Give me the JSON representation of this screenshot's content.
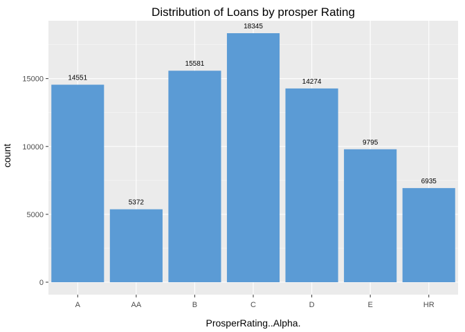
{
  "colors": {
    "panel_bg": "#EBEBEB",
    "grid_major": "#FFFFFF",
    "bar_fill": "#5B9BD5",
    "tick_text": "#4D4D4D"
  },
  "chart_data": {
    "type": "bar",
    "title": "Distribution of Loans by prosper Rating",
    "xlabel": "ProsperRating..Alpha.",
    "ylabel": "count",
    "categories": [
      "A",
      "AA",
      "B",
      "C",
      "D",
      "E",
      "HR"
    ],
    "values": [
      14551,
      5372,
      15581,
      18345,
      14274,
      9795,
      6935
    ],
    "data_labels": [
      "14551",
      "5372",
      "15581",
      "18345",
      "14274",
      "9795",
      "6935"
    ],
    "ylim": [
      -917,
      19262
    ],
    "yticks": [
      0,
      5000,
      10000,
      15000
    ],
    "ytick_labels": [
      "0",
      "5000",
      "10000",
      "15000"
    ],
    "grid": true,
    "legend": "none"
  }
}
